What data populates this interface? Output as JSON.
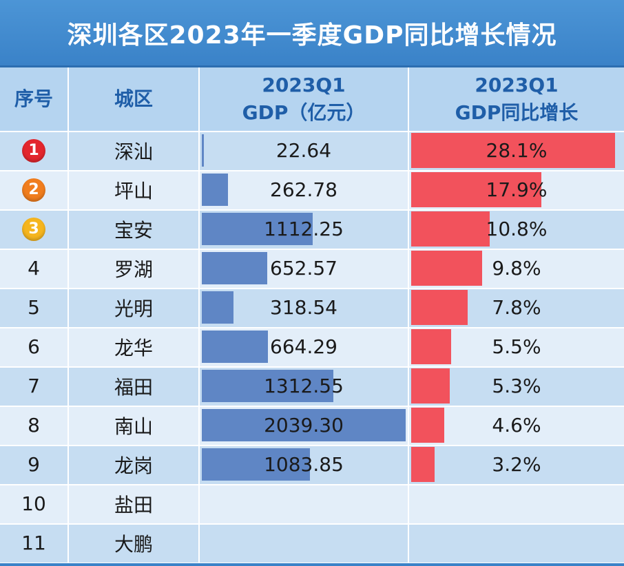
{
  "title": "深圳各区2023年一季度GDP同比增长情况",
  "colors": {
    "title_bg": "#3a82c8",
    "header_bg": "#b5d4f0",
    "gdp_bar": "#5f86c5",
    "growth_bar": "#f2525c",
    "rank_badges": [
      "#e3262d",
      "#f07d1e",
      "#f5b51f"
    ]
  },
  "headers": {
    "index": "序号",
    "district": "城区",
    "gdp_line1": "2023Q1",
    "gdp_line2": "GDP（亿元）",
    "growth_line1": "2023Q1",
    "growth_line2": "GDP同比增长"
  },
  "chart_data": {
    "type": "table",
    "title": "深圳各区2023年一季度GDP同比增长情况",
    "columns": [
      "序号",
      "城区",
      "2023Q1 GDP（亿元）",
      "2023Q1 GDP同比增长"
    ],
    "gdp_scale_max": 2039.3,
    "growth_scale_max": 28.1,
    "rows": [
      {
        "index": "1",
        "district": "深汕",
        "gdp": 22.64,
        "gdp_label": "22.64",
        "growth": 28.1,
        "growth_label": "28.1%",
        "badge": "red"
      },
      {
        "index": "2",
        "district": "坪山",
        "gdp": 262.78,
        "gdp_label": "262.78",
        "growth": 17.9,
        "growth_label": "17.9%",
        "badge": "orange"
      },
      {
        "index": "3",
        "district": "宝安",
        "gdp": 1112.25,
        "gdp_label": "1112.25",
        "growth": 10.8,
        "growth_label": "10.8%",
        "badge": "yellow"
      },
      {
        "index": "4",
        "district": "罗湖",
        "gdp": 652.57,
        "gdp_label": "652.57",
        "growth": 9.8,
        "growth_label": "9.8%"
      },
      {
        "index": "5",
        "district": "光明",
        "gdp": 318.54,
        "gdp_label": "318.54",
        "growth": 7.8,
        "growth_label": "7.8%"
      },
      {
        "index": "6",
        "district": "龙华",
        "gdp": 664.29,
        "gdp_label": "664.29",
        "growth": 5.5,
        "growth_label": "5.5%"
      },
      {
        "index": "7",
        "district": "福田",
        "gdp": 1312.55,
        "gdp_label": "1312.55",
        "growth": 5.3,
        "growth_label": "5.3%"
      },
      {
        "index": "8",
        "district": "南山",
        "gdp": 2039.3,
        "gdp_label": "2039.30",
        "growth": 4.6,
        "growth_label": "4.6%"
      },
      {
        "index": "9",
        "district": "龙岗",
        "gdp": 1083.85,
        "gdp_label": "1083.85",
        "growth": 3.2,
        "growth_label": "3.2%"
      },
      {
        "index": "10",
        "district": "盐田",
        "gdp": null,
        "gdp_label": "",
        "growth": null,
        "growth_label": ""
      },
      {
        "index": "11",
        "district": "大鹏",
        "gdp": null,
        "gdp_label": "",
        "growth": null,
        "growth_label": ""
      }
    ]
  }
}
